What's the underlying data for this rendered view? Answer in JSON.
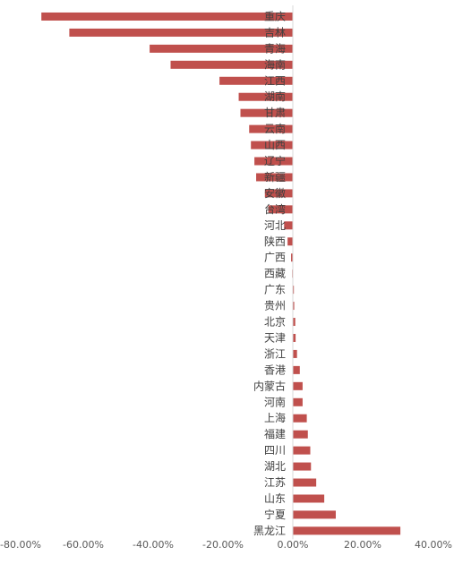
{
  "chart_data": {
    "type": "bar",
    "orientation": "horizontal",
    "categories": [
      "重庆",
      "吉林",
      "青海",
      "海南",
      "江西",
      "湖南",
      "甘肃",
      "云南",
      "山西",
      "辽宁",
      "新疆",
      "安徽",
      "台湾",
      "河北",
      "陕西",
      "广西",
      "西藏",
      "广东",
      "贵州",
      "北京",
      "天津",
      "浙江",
      "香港",
      "内蒙古",
      "河南",
      "上海",
      "福建",
      "四川",
      "湖北",
      "江苏",
      "山东",
      "宁夏",
      "黑龙江"
    ],
    "values": [
      -72.0,
      -64.0,
      -41.0,
      -35.0,
      -21.0,
      -15.5,
      -15.0,
      -12.5,
      -12.0,
      -11.0,
      -10.5,
      -8.0,
      -7.0,
      -2.5,
      -1.5,
      -0.5,
      -0.2,
      0.3,
      0.4,
      0.7,
      0.8,
      1.2,
      2.0,
      2.8,
      2.8,
      4.0,
      4.3,
      5.0,
      5.2,
      6.7,
      9.0,
      12.3,
      30.8
    ],
    "xlim": [
      -80,
      40
    ],
    "tick_values": [
      -80,
      -60,
      -40,
      -20,
      0,
      20,
      40
    ],
    "tick_labels": [
      "-80.00%",
      "-60.00%",
      "-40.00%",
      "-20.00%",
      "0.00%",
      "20.00%",
      "40.00%"
    ],
    "bar_color": "#c0504d",
    "grid": false,
    "title": "",
    "xlabel": "",
    "ylabel": ""
  }
}
